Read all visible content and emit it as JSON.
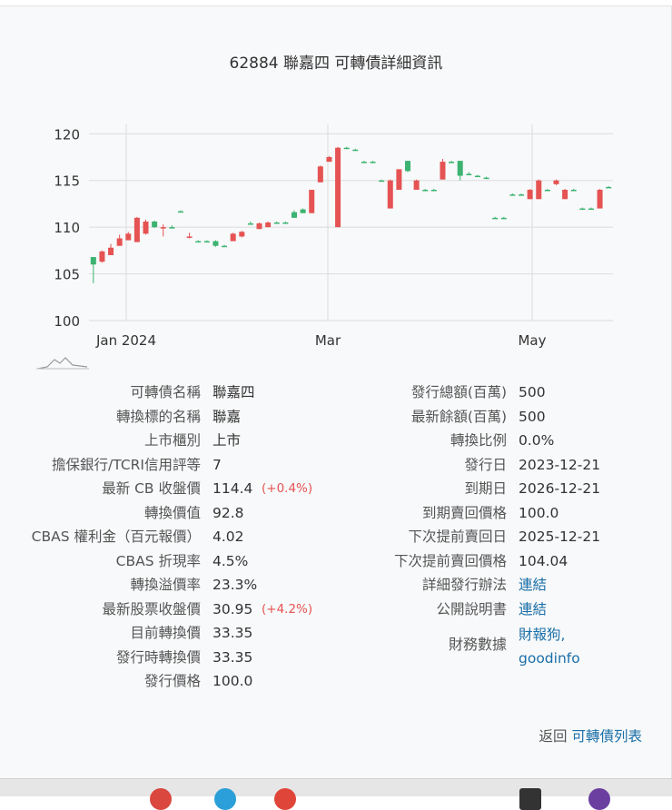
{
  "title": "62884 聯嘉四 可轉債詳細資訊",
  "chart_data": {
    "type": "candlestick",
    "y_ticks": [
      "120",
      "115",
      "110",
      "105",
      "100"
    ],
    "ylim": [
      100,
      121
    ],
    "x_ticks": [
      "Jan 2024",
      "Mar",
      "May"
    ],
    "up_color": "#3cb371",
    "down_color": "#e55353",
    "candles": [
      {
        "o": 106,
        "h": 106.8,
        "l": 104.0,
        "c": 106.8
      },
      {
        "o": 107.4,
        "h": 107.5,
        "l": 106.2,
        "c": 106.3
      },
      {
        "o": 107.8,
        "h": 108.2,
        "l": 107.0,
        "c": 107.0
      },
      {
        "o": 108.8,
        "h": 109.2,
        "l": 108.0,
        "c": 108.0
      },
      {
        "o": 109.3,
        "h": 109.5,
        "l": 108.6,
        "c": 108.6
      },
      {
        "o": 111.0,
        "h": 111.1,
        "l": 108.4,
        "c": 108.4
      },
      {
        "o": 110.6,
        "h": 110.8,
        "l": 109.2,
        "c": 109.3
      },
      {
        "o": 110.0,
        "h": 110.7,
        "l": 109.9,
        "c": 110.6
      },
      {
        "o": 110.0,
        "h": 110.3,
        "l": 109.0,
        "c": 109.9
      },
      {
        "o": 110.0,
        "h": 110.2,
        "l": 109.9,
        "c": 110.0
      },
      {
        "o": 111.7,
        "h": 111.8,
        "l": 111.6,
        "c": 111.7
      },
      {
        "o": 109.0,
        "h": 109.4,
        "l": 108.8,
        "c": 108.9
      },
      {
        "o": 108.5,
        "h": 108.6,
        "l": 108.4,
        "c": 108.5
      },
      {
        "o": 108.5,
        "h": 108.6,
        "l": 108.4,
        "c": 108.5
      },
      {
        "o": 108.0,
        "h": 108.6,
        "l": 107.9,
        "c": 108.5
      },
      {
        "o": 108.0,
        "h": 108.1,
        "l": 107.9,
        "c": 108.0
      },
      {
        "o": 109.3,
        "h": 109.4,
        "l": 108.5,
        "c": 108.5
      },
      {
        "o": 109.5,
        "h": 109.6,
        "l": 108.9,
        "c": 109.0
      },
      {
        "o": 110.4,
        "h": 110.6,
        "l": 110.3,
        "c": 110.4
      },
      {
        "o": 110.4,
        "h": 110.5,
        "l": 109.8,
        "c": 109.8
      },
      {
        "o": 110.5,
        "h": 110.6,
        "l": 110.0,
        "c": 110.0
      },
      {
        "o": 110.5,
        "h": 110.6,
        "l": 110.4,
        "c": 110.5
      },
      {
        "o": 110.5,
        "h": 110.6,
        "l": 110.4,
        "c": 110.5
      },
      {
        "o": 111.0,
        "h": 111.8,
        "l": 111.0,
        "c": 111.6
      },
      {
        "o": 111.5,
        "h": 112.0,
        "l": 111.5,
        "c": 111.9
      },
      {
        "o": 114.0,
        "h": 114.0,
        "l": 111.5,
        "c": 111.5
      },
      {
        "o": 116.5,
        "h": 116.6,
        "l": 114.8,
        "c": 114.8
      },
      {
        "o": 117.5,
        "h": 117.6,
        "l": 117.0,
        "c": 117.0
      },
      {
        "o": 118.5,
        "h": 118.6,
        "l": 110.0,
        "c": 110.0
      },
      {
        "o": 118.5,
        "h": 118.6,
        "l": 118.4,
        "c": 118.5
      },
      {
        "o": 118.3,
        "h": 118.4,
        "l": 118.2,
        "c": 118.3
      },
      {
        "o": 117.0,
        "h": 117.1,
        "l": 116.9,
        "c": 117.0
      },
      {
        "o": 117.0,
        "h": 117.1,
        "l": 116.9,
        "c": 117.0
      },
      {
        "o": 115.0,
        "h": 115.1,
        "l": 114.9,
        "c": 115.0
      },
      {
        "o": 115.0,
        "h": 115.1,
        "l": 112.0,
        "c": 112.0
      },
      {
        "o": 116.2,
        "h": 116.2,
        "l": 114.0,
        "c": 114.0
      },
      {
        "o": 116.0,
        "h": 117.1,
        "l": 115.9,
        "c": 117.1
      },
      {
        "o": 115.0,
        "h": 115.1,
        "l": 114.0,
        "c": 114.0
      },
      {
        "o": 114.0,
        "h": 114.1,
        "l": 113.9,
        "c": 114.0
      },
      {
        "o": 114.0,
        "h": 114.1,
        "l": 113.9,
        "c": 114.0
      },
      {
        "o": 117.0,
        "h": 117.3,
        "l": 115.1,
        "c": 115.1
      },
      {
        "o": 117.0,
        "h": 117.1,
        "l": 116.9,
        "c": 117.0
      },
      {
        "o": 115.5,
        "h": 117.1,
        "l": 115.0,
        "c": 117.1
      },
      {
        "o": 115.7,
        "h": 115.9,
        "l": 115.6,
        "c": 115.7
      },
      {
        "o": 115.5,
        "h": 115.6,
        "l": 115.4,
        "c": 115.5
      },
      {
        "o": 115.3,
        "h": 115.4,
        "l": 115.2,
        "c": 115.3
      },
      {
        "o": 111.0,
        "h": 111.1,
        "l": 110.9,
        "c": 111.0
      },
      {
        "o": 111.0,
        "h": 111.1,
        "l": 110.9,
        "c": 111.0
      },
      {
        "o": 113.5,
        "h": 113.6,
        "l": 113.4,
        "c": 113.5
      },
      {
        "o": 113.5,
        "h": 113.6,
        "l": 113.4,
        "c": 113.5
      },
      {
        "o": 114.0,
        "h": 114.1,
        "l": 113.0,
        "c": 113.0
      },
      {
        "o": 115.0,
        "h": 115.1,
        "l": 113.0,
        "c": 113.0
      },
      {
        "o": 114.0,
        "h": 114.1,
        "l": 113.9,
        "c": 114.0
      },
      {
        "o": 115.0,
        "h": 115.1,
        "l": 114.5,
        "c": 114.6
      },
      {
        "o": 114.0,
        "h": 114.1,
        "l": 113.0,
        "c": 113.0
      },
      {
        "o": 114.0,
        "h": 114.1,
        "l": 113.9,
        "c": 114.0
      },
      {
        "o": 112.0,
        "h": 112.1,
        "l": 111.9,
        "c": 112.0
      },
      {
        "o": 112.0,
        "h": 112.1,
        "l": 111.9,
        "c": 112.0
      },
      {
        "o": 114.0,
        "h": 114.1,
        "l": 112.0,
        "c": 112.0
      },
      {
        "o": 114.3,
        "h": 114.4,
        "l": 114.2,
        "c": 114.3
      }
    ]
  },
  "left_rows": [
    {
      "label": "可轉債名稱",
      "value": "聯嘉四"
    },
    {
      "label": "轉換標的名稱",
      "value": "聯嘉"
    },
    {
      "label": "上市櫃別",
      "value": "上市"
    },
    {
      "label": "擔保銀行/TCRI信用評等",
      "value": "7"
    },
    {
      "label": "最新 CB 收盤價",
      "value": "114.4",
      "change": "(+0.4%)"
    },
    {
      "label": "轉換價值",
      "value": "92.8"
    },
    {
      "label": "CBAS 權利金（百元報價）",
      "value": "4.02"
    },
    {
      "label": "CBAS 折現率",
      "value": "4.5%"
    },
    {
      "label": "轉換溢價率",
      "value": "23.3%"
    },
    {
      "label": "最新股票收盤價",
      "value": "30.95",
      "change": "(+4.2%)"
    },
    {
      "label": "目前轉換價",
      "value": "33.35"
    },
    {
      "label": "發行時轉換價",
      "value": "33.35"
    },
    {
      "label": "發行價格",
      "value": "100.0"
    }
  ],
  "right_rows": [
    {
      "label": "發行總額(百萬)",
      "value": "500"
    },
    {
      "label": "最新餘額(百萬)",
      "value": "500"
    },
    {
      "label": "轉換比例",
      "value": "0.0%"
    },
    {
      "label": "發行日",
      "value": "2023-12-21"
    },
    {
      "label": "到期日",
      "value": "2026-12-21"
    },
    {
      "label": "到期賣回價格",
      "value": "100.0"
    },
    {
      "label": "下次提前賣回日",
      "value": "2025-12-21"
    },
    {
      "label": "下次提前賣回價格",
      "value": "104.04"
    },
    {
      "label": "詳細發行辦法",
      "value": "連結",
      "link": true
    },
    {
      "label": "公開說明書",
      "value": "連結",
      "link": true
    }
  ],
  "finance": {
    "label": "財務數據",
    "link1": "財報狗,",
    "link2": "goodinfo"
  },
  "back": {
    "prefix": "返回",
    "link": "可轉債列表"
  }
}
